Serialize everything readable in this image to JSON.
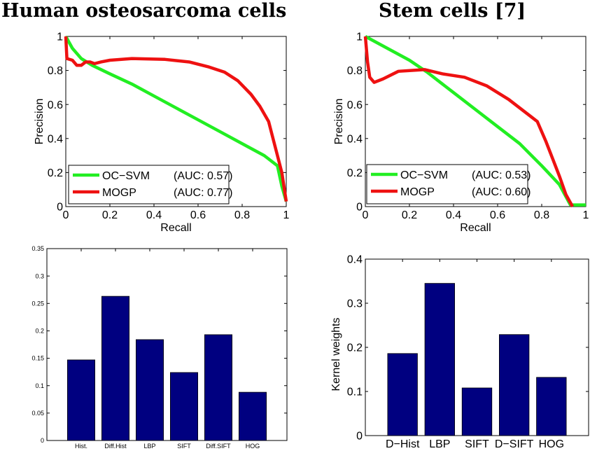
{
  "titles": [
    "Human osteosarcoma cells",
    "Stem cells [7]"
  ],
  "chart_data": [
    {
      "type": "line",
      "xlabel": "Recall",
      "ylabel": "Precision",
      "xlim": [
        0,
        1
      ],
      "ylim": [
        0,
        1
      ],
      "xticks": [
        "0",
        "0.2",
        "0.4",
        "0.6",
        "0.8",
        "1"
      ],
      "yticks": [
        "0",
        "0.2",
        "0.4",
        "0.6",
        "0.8",
        "1"
      ],
      "grid": false,
      "legend_position": "bottom-left",
      "series": [
        {
          "name": "OC−SVM",
          "auc_label": "(AUC: 0.57)",
          "color": "#22ee22",
          "x": [
            0,
            0.03,
            0.07,
            0.12,
            0.2,
            0.3,
            0.4,
            0.5,
            0.6,
            0.7,
            0.8,
            0.9,
            0.96,
            0.98,
            1
          ],
          "y": [
            1,
            0.93,
            0.87,
            0.83,
            0.78,
            0.72,
            0.65,
            0.58,
            0.51,
            0.44,
            0.37,
            0.3,
            0.24,
            0.12,
            0.03
          ]
        },
        {
          "name": "MOGP",
          "auc_label": "(AUC: 0.77)",
          "color": "#ee1111",
          "x": [
            0,
            0.005,
            0.03,
            0.05,
            0.07,
            0.09,
            0.11,
            0.13,
            0.16,
            0.2,
            0.3,
            0.45,
            0.56,
            0.65,
            0.72,
            0.78,
            0.84,
            0.88,
            0.92,
            0.94,
            0.96,
            0.98,
            1
          ],
          "y": [
            1,
            0.87,
            0.86,
            0.83,
            0.83,
            0.85,
            0.85,
            0.84,
            0.85,
            0.86,
            0.87,
            0.865,
            0.85,
            0.82,
            0.79,
            0.74,
            0.66,
            0.59,
            0.5,
            0.4,
            0.3,
            0.2,
            0.03
          ]
        }
      ]
    },
    {
      "type": "line",
      "xlabel": "Recall",
      "ylabel": "Precision",
      "xlim": [
        0,
        1
      ],
      "ylim": [
        0,
        1
      ],
      "xticks": [
        "0",
        "0.2",
        "0.4",
        "0.6",
        "0.8",
        "1"
      ],
      "yticks": [
        "0",
        "0.2",
        "0.4",
        "0.6",
        "0.8",
        "1"
      ],
      "grid": false,
      "legend_position": "bottom-left",
      "series": [
        {
          "name": "OC−SVM",
          "auc_label": "(AUC: 0.53)",
          "color": "#22ee22",
          "x": [
            0,
            0.1,
            0.2,
            0.28,
            0.35,
            0.4,
            0.5,
            0.6,
            0.7,
            0.8,
            0.88,
            0.93,
            1
          ],
          "y": [
            1,
            0.93,
            0.86,
            0.79,
            0.72,
            0.67,
            0.57,
            0.47,
            0.37,
            0.24,
            0.13,
            0.01,
            0.01
          ]
        },
        {
          "name": "MOGP",
          "auc_label": "(AUC: 0.60)",
          "color": "#ee1111",
          "x": [
            0,
            0.01,
            0.02,
            0.04,
            0.08,
            0.15,
            0.27,
            0.35,
            0.45,
            0.55,
            0.65,
            0.72,
            0.78,
            0.82,
            0.85,
            0.88,
            0.91,
            0.94
          ],
          "y": [
            1,
            0.85,
            0.76,
            0.73,
            0.75,
            0.795,
            0.805,
            0.78,
            0.76,
            0.71,
            0.63,
            0.56,
            0.5,
            0.38,
            0.28,
            0.18,
            0.07,
            0
          ]
        }
      ]
    },
    {
      "type": "bar",
      "categories": [
        "Hist.",
        "Diff.Hist",
        "LBP",
        "SIFT",
        "Diff.SIFT",
        "HOG"
      ],
      "values": [
        0.147,
        0.263,
        0.184,
        0.124,
        0.193,
        0.088
      ],
      "ylim": [
        0,
        0.35
      ],
      "yticks": [
        "0",
        "0.05",
        "0.1",
        "0.15",
        "0.2",
        "0.25",
        "0.3",
        "0.35"
      ],
      "xlabel": "",
      "ylabel": "",
      "color": "#000080"
    },
    {
      "type": "bar",
      "categories": [
        "D−Hist",
        "LBP",
        "SIFT",
        "D−SIFT",
        "HOG"
      ],
      "values": [
        0.186,
        0.345,
        0.108,
        0.229,
        0.132
      ],
      "ylim": [
        0,
        0.4
      ],
      "yticks": [
        "0",
        "0.1",
        "0.2",
        "0.3",
        "0.4"
      ],
      "xlabel": "",
      "ylabel": "Kernel weights",
      "color": "#000080"
    }
  ]
}
